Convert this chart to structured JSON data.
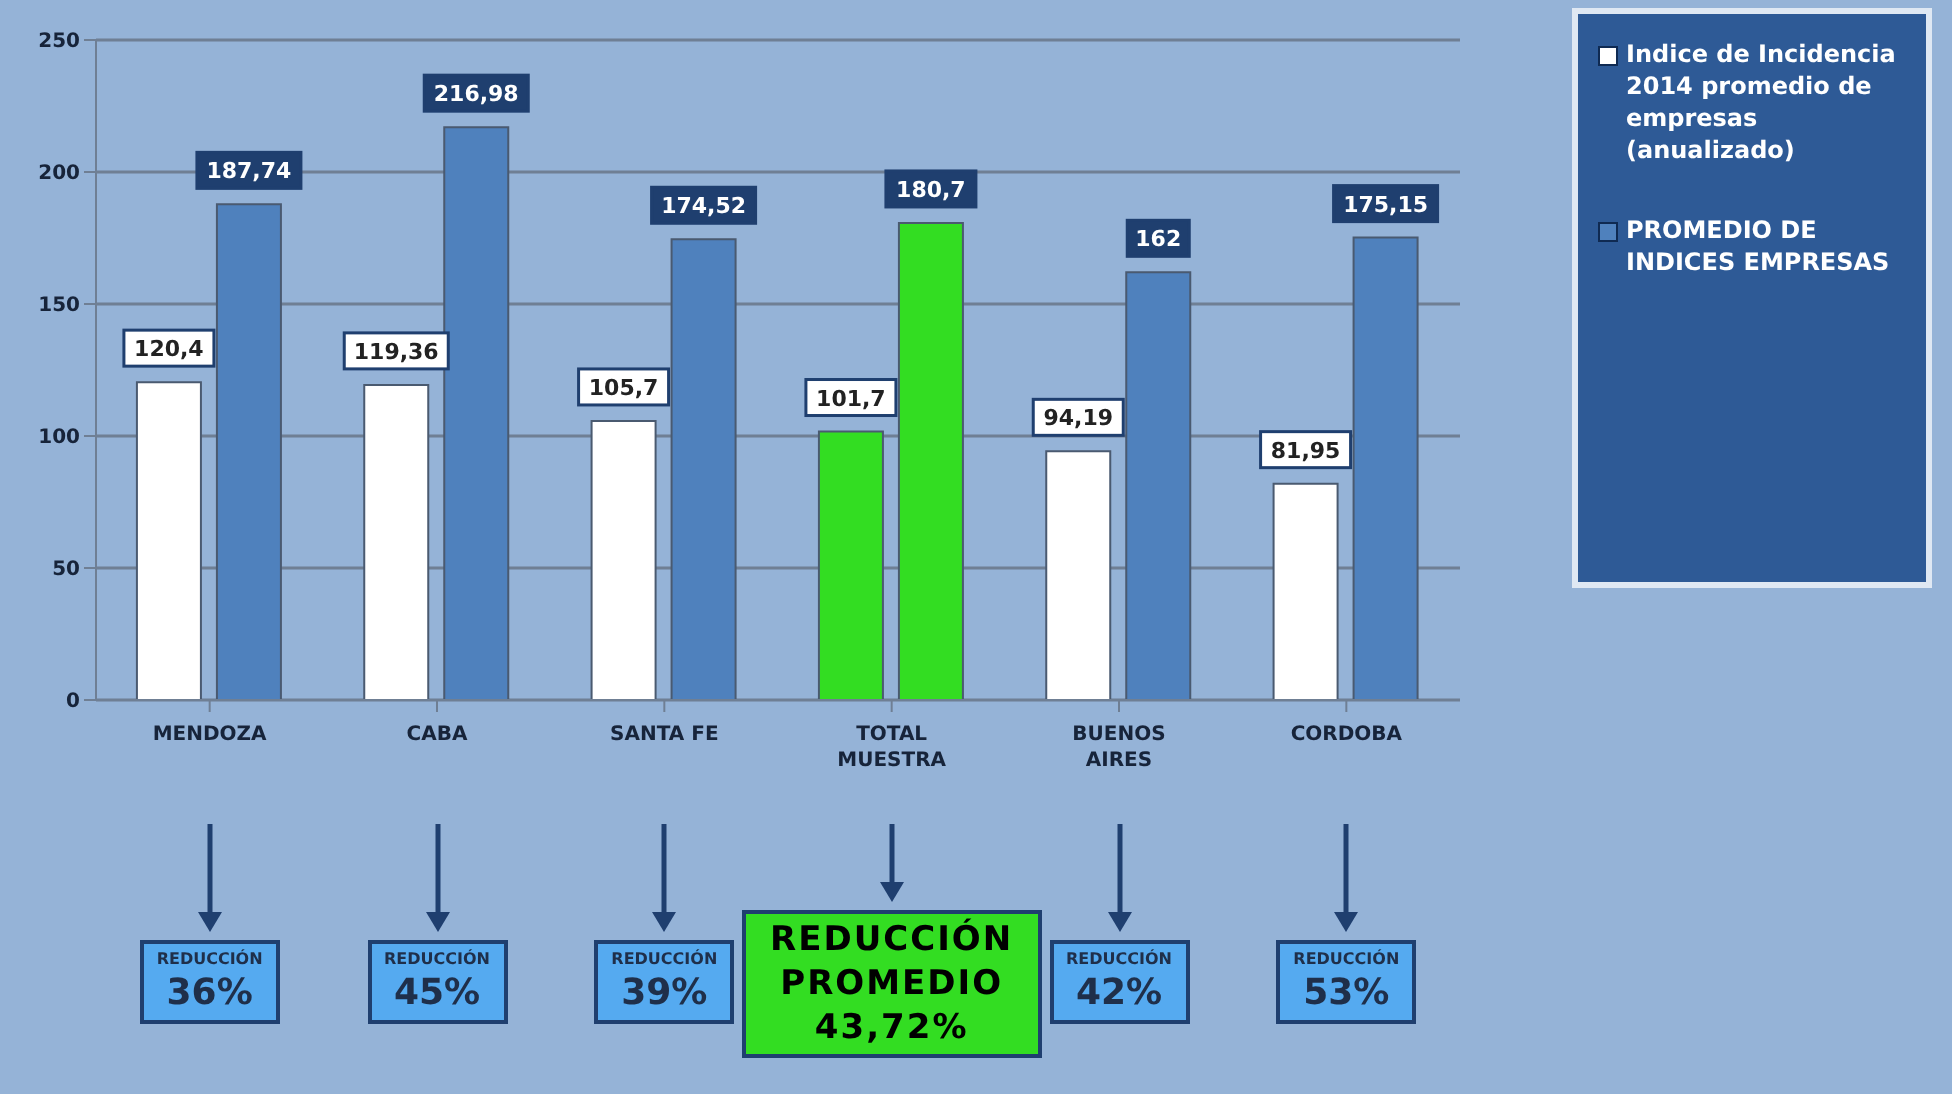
{
  "chart_data": {
    "type": "bar",
    "categories": [
      "MENDOZA",
      "CABA",
      "SANTA FE",
      "TOTAL MUESTRA",
      "BUENOS AIRES",
      "CORDOBA"
    ],
    "series": [
      {
        "name": "Indice de Incidencia 2014 promedio de empresas (anualizado)",
        "color": "#ffffff",
        "colors": [
          "#ffffff",
          "#ffffff",
          "#ffffff",
          "#33dd22",
          "#ffffff",
          "#ffffff"
        ],
        "values": [
          120.4,
          119.36,
          105.7,
          101.7,
          94.19,
          81.95
        ],
        "value_labels": [
          "120,4",
          "119,36",
          "105,7",
          "101,7",
          "94,19",
          "81,95"
        ]
      },
      {
        "name": "PROMEDIO DE INDICES EMPRESAS",
        "color": "#4f81bd",
        "colors": [
          "#4f81bd",
          "#4f81bd",
          "#4f81bd",
          "#33dd22",
          "#4f81bd",
          "#4f81bd"
        ],
        "values": [
          187.74,
          216.98,
          174.52,
          180.7,
          162,
          175.15
        ],
        "value_labels": [
          "187,74",
          "216,98",
          "174,52",
          "180,7",
          "162",
          "175,15"
        ]
      }
    ],
    "ylim": [
      0,
      250
    ],
    "yticks": [
      0,
      50,
      100,
      150,
      200,
      250
    ],
    "grid": "y",
    "legend": "right",
    "annotations": [
      "REDUCCIÓN\n36%",
      "REDUCCIÓN\n45%",
      "REDUCCIÓN\n39%",
      "REDUCCIÓN\nPROMEDIO\n43,72%",
      "REDUCCIÓN\n42%",
      "REDUCCIÓN\n53%"
    ]
  }
}
